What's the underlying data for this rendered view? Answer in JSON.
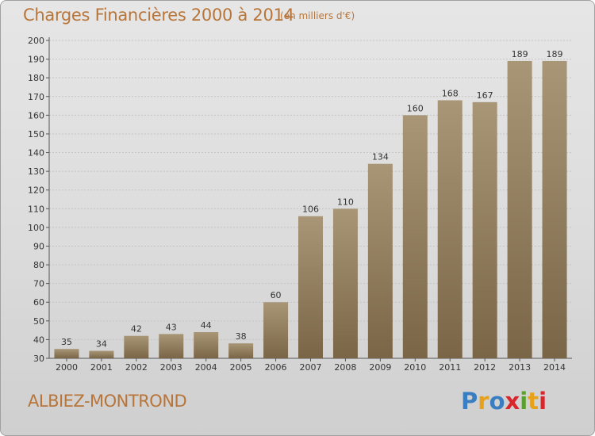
{
  "header": {
    "title": "Charges Financières 2000 à 2014",
    "subtitle": "(en milliers d'€)"
  },
  "footer": {
    "commune": "ALBIEZ-MONTROND",
    "logo_text": "Proxiti",
    "logo_colors": [
      "#3a7ec2",
      "#e8a21a",
      "#3a7ec2",
      "#d8262c",
      "#5aa02c",
      "#e8a21a",
      "#d8262c"
    ]
  },
  "colors": {
    "bar_top": "#a89677",
    "bar_bottom": "#7a6646",
    "title": "#b8753a",
    "grid": "#c4c4c4"
  },
  "chart_data": {
    "type": "bar",
    "title": "Charges Financières 2000 à 2014",
    "subtitle": "(en milliers d'€)",
    "categories": [
      "2000",
      "2001",
      "2002",
      "2003",
      "2004",
      "2005",
      "2006",
      "2007",
      "2008",
      "2009",
      "2010",
      "2011",
      "2012",
      "2013",
      "2014"
    ],
    "values": [
      35,
      34,
      42,
      43,
      44,
      38,
      60,
      106,
      110,
      134,
      160,
      168,
      167,
      189,
      189
    ],
    "ylim": [
      30,
      200
    ],
    "yticks": [
      30,
      40,
      50,
      60,
      70,
      80,
      90,
      100,
      110,
      120,
      130,
      140,
      150,
      160,
      170,
      180,
      190,
      200
    ],
    "grid": true,
    "data_labels": true
  }
}
